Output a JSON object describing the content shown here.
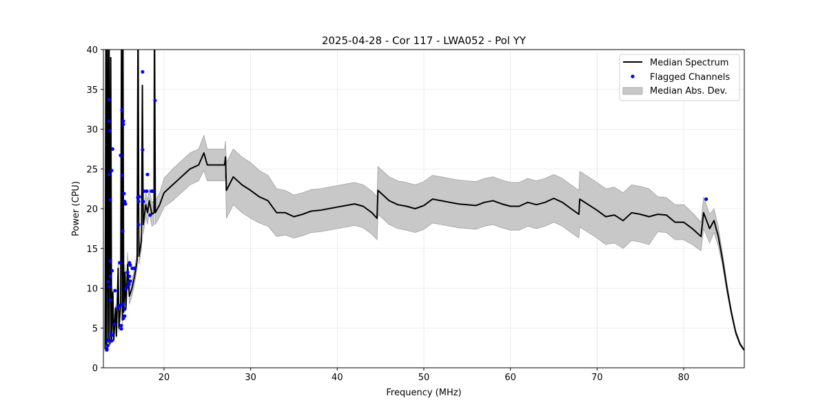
{
  "chart_data": {
    "type": "line",
    "title": "2025-04-28 - Cor 117 - LWA052 - Pol YY",
    "xlabel": "Frequency (MHz)",
    "ylabel": "Power (CPU)",
    "xlim": [
      13.0,
      87.0
    ],
    "ylim": [
      0,
      40
    ],
    "xticks": [
      20,
      30,
      40,
      50,
      60,
      70,
      80
    ],
    "yticks": [
      0,
      5,
      10,
      15,
      20,
      25,
      30,
      35,
      40
    ],
    "grid": true,
    "legend_placement": "top-right",
    "legend": [
      "Median Spectrum",
      "Flagged Channels",
      "Median Abs. Dev."
    ],
    "colors": {
      "line": "#000000",
      "flagged": "#0000ff",
      "band": "#c8c8c8",
      "band_edge": "#a0a0a0",
      "grid": "#e6e6e6"
    },
    "series": [
      {
        "name": "Median Spectrum",
        "x": [
          13.2,
          13.3,
          13.35,
          13.45,
          13.55,
          13.65,
          13.75,
          13.85,
          13.95,
          14.1,
          14.2,
          14.4,
          14.5,
          14.7,
          14.8,
          15.0,
          15.1,
          15.2,
          15.25,
          15.35,
          15.5,
          15.6,
          15.8,
          16.0,
          16.3,
          16.6,
          16.9,
          17.0,
          17.1,
          17.4,
          17.5,
          17.6,
          17.9,
          18.1,
          18.3,
          18.6,
          18.85,
          18.9,
          19.0,
          19.5,
          20,
          21,
          22,
          23,
          24,
          24.6,
          25,
          26,
          27,
          27.1,
          27.2,
          28,
          29,
          30,
          31,
          32,
          33,
          34,
          35,
          36,
          37,
          38,
          39,
          40,
          41,
          42,
          43,
          44,
          44.6,
          44.7,
          45,
          46,
          47,
          48,
          49,
          50,
          51,
          52,
          53,
          54,
          55,
          56,
          57,
          58,
          59,
          60,
          61,
          62,
          63,
          64,
          65,
          66,
          67,
          67.9,
          68,
          69,
          70,
          71,
          72,
          73,
          74,
          75,
          76,
          77,
          78,
          79,
          80,
          81,
          82,
          82.3,
          83,
          83.5,
          84,
          84.5,
          85,
          85.5,
          86,
          86.5,
          87
        ],
        "values": [
          2.3,
          45,
          3,
          45,
          3.2,
          45,
          3,
          39,
          3.3,
          9.5,
          3.5,
          7.5,
          4,
          12.5,
          5,
          8,
          45,
          6,
          45,
          7,
          12,
          7.5,
          13,
          9,
          10,
          11.5,
          13.5,
          45,
          14,
          16,
          35.5,
          18,
          20.5,
          19.5,
          21,
          19.3,
          19.5,
          45,
          19.5,
          20.5,
          22,
          23,
          24,
          25,
          25.5,
          27,
          25.5,
          25.5,
          25.5,
          26.5,
          22.3,
          24,
          23,
          22.3,
          21.5,
          21,
          19.5,
          19.5,
          19,
          19.3,
          19.7,
          19.8,
          20,
          20.2,
          20.4,
          20.6,
          20.3,
          19.5,
          18.8,
          22.3,
          22,
          21,
          20.5,
          20.3,
          20,
          20.4,
          21.2,
          21,
          20.8,
          20.6,
          20.5,
          20.4,
          20.8,
          21,
          20.6,
          20.3,
          20.3,
          20.8,
          20.5,
          20.8,
          21.3,
          20.8,
          20,
          19.3,
          21.2,
          20.5,
          19.8,
          19,
          19.2,
          18.5,
          19.5,
          19.3,
          19,
          19.3,
          19.2,
          18.3,
          18.3,
          17.5,
          16.5,
          19.5,
          17.5,
          18.5,
          16.5,
          13.5,
          10,
          7,
          4.5,
          3,
          2.2
        ],
        "mad": [
          0.3,
          0,
          0.3,
          0,
          0.3,
          0,
          0.3,
          0,
          0.3,
          0.5,
          0.3,
          0.5,
          0.3,
          1,
          0.5,
          0.5,
          0,
          0.5,
          0,
          0.5,
          1,
          0.5,
          1.5,
          1,
          1,
          1,
          1,
          0,
          1,
          1.2,
          0,
          1.2,
          1.5,
          1.5,
          1.5,
          1.5,
          1.5,
          0,
          1.5,
          1.5,
          1.8,
          2,
          2,
          2,
          2,
          2.2,
          2,
          2,
          2,
          2,
          3.5,
          3.5,
          3.5,
          3.5,
          3.3,
          3.2,
          3,
          2.8,
          2.7,
          2.7,
          2.7,
          2.7,
          2.7,
          2.7,
          2.7,
          2.7,
          2.7,
          2.7,
          2.7,
          3,
          3,
          3,
          3,
          3,
          3,
          3,
          3,
          3,
          3,
          3,
          3,
          3,
          3,
          3,
          3,
          3,
          3,
          3,
          3,
          3,
          3,
          3,
          3,
          3,
          3.5,
          3.5,
          3.5,
          3.5,
          3.5,
          3.5,
          3.5,
          3.5,
          3.5,
          2.2,
          2.2,
          2.2,
          2.2,
          2,
          1.8,
          2,
          1.8,
          1.5,
          1.2,
          0.8,
          0.6,
          0.4,
          0.3,
          0.2,
          0.1
        ]
      },
      {
        "name": "Flagged Channels",
        "type": "scatter",
        "x": [
          13.66,
          13.64,
          13.74,
          14.06,
          13.64,
          13.95,
          13.8,
          13.8,
          14.0,
          13.8,
          13.56,
          13.7,
          14.35,
          13.8,
          14.27,
          13.87,
          13.95,
          13.95,
          13.5,
          13.5,
          13.4,
          13.4,
          15.15,
          15.3,
          15.3,
          14.99,
          15.15,
          15.38,
          15.46,
          15.54,
          15.23,
          14.9,
          15.8,
          16.0,
          16.1,
          16.34,
          16.58,
          16.0,
          16.1,
          15.94,
          15.7,
          15.62,
          15.23,
          15.46,
          14.9,
          14.67,
          15.46,
          15.3,
          15.07,
          15.07,
          17.53,
          17.53,
          18.96,
          18.09,
          17.69,
          18.0,
          18.56,
          18.72,
          16.98,
          17.13,
          17.05,
          17.6,
          18.4,
          17.05,
          82.6
        ],
        "values": [
          33.7,
          31.0,
          29.8,
          27.5,
          24.3,
          24.8,
          21.1,
          13.4,
          12.2,
          11.5,
          10.8,
          10.2,
          9.7,
          8.5,
          5.5,
          4.3,
          4.1,
          3.4,
          3.5,
          2.8,
          2.4,
          2.25,
          32.4,
          31.0,
          30.6,
          26.7,
          24.2,
          21.9,
          20.9,
          20.6,
          17.2,
          13.2,
          12.0,
          13.2,
          12.9,
          12.5,
          12.5,
          11.5,
          10.9,
          10.5,
          10.1,
          9.9,
          8.0,
          7.4,
          7.8,
          7.6,
          6.5,
          6.2,
          5.3,
          4.9,
          37.2,
          27.4,
          33.6,
          24.3,
          22.2,
          22.2,
          22.2,
          22.2,
          21.4,
          21.5,
          20.9,
          20.9,
          19.2,
          18.0,
          21.2
        ]
      }
    ]
  }
}
